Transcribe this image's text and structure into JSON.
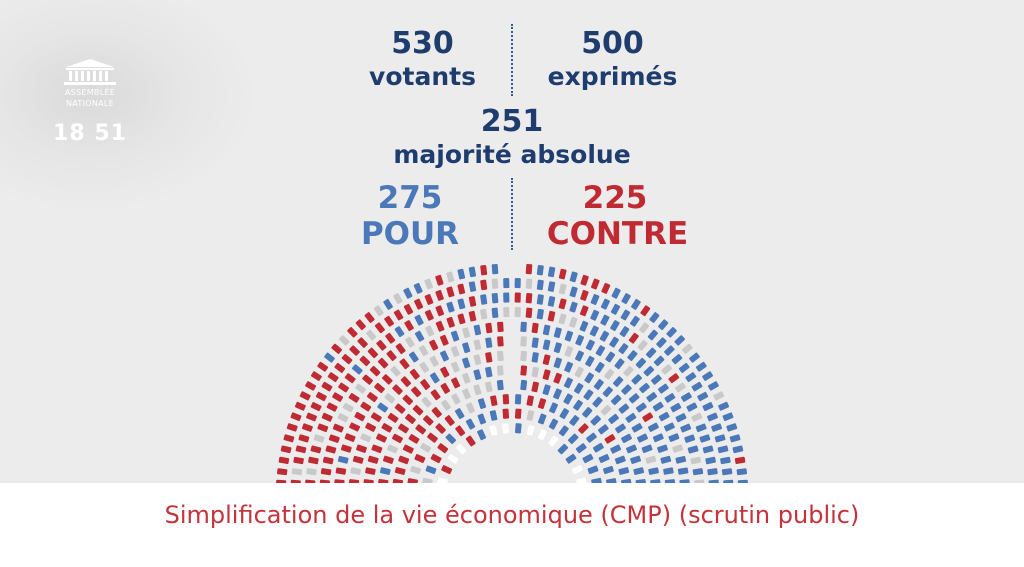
{
  "logo": {
    "line1": "ASSEMBLÉE",
    "line2": "NATIONALE",
    "icon": "palais-bourbon-icon"
  },
  "clock": "18 51",
  "stats": {
    "votants_value": "530",
    "votants_label": "votants",
    "exprimes_value": "500",
    "exprimes_label": "exprimés",
    "majorite_value": "251",
    "majorite_label": "majorité absolue",
    "pour_value": "275",
    "pour_label": "POUR",
    "contre_value": "225",
    "contre_label": "CONTRE"
  },
  "colors": {
    "navy": "#1f3c6e",
    "pour": "#4a78b8",
    "contre": "#bf2a33",
    "abstention": "#c9c9c9",
    "empty": "#ffffff",
    "title": "#c4323a"
  },
  "hemicycle": {
    "seat_colors_by_sector": [
      "contre",
      "contre",
      "mixed",
      "mixed",
      "pour",
      "pour"
    ]
  },
  "footer": {
    "title": "Simplification de la vie économique (CMP) (scrutin public)"
  }
}
